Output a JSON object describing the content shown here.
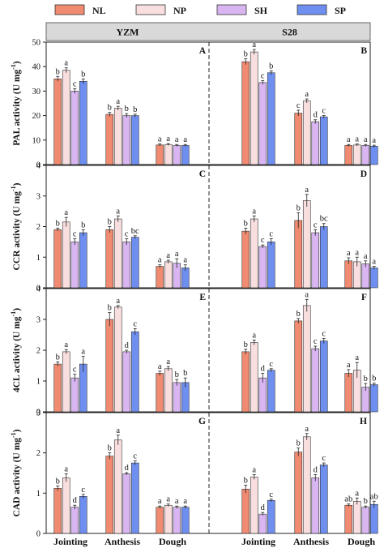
{
  "legend": [
    {
      "name": "NL",
      "color": "#f08a70"
    },
    {
      "name": "NP",
      "color": "#f8dede"
    },
    {
      "name": "SH",
      "color": "#d9b6f2"
    },
    {
      "name": "SP",
      "color": "#6e8ff0"
    }
  ],
  "strips": [
    "YZM",
    "S28"
  ],
  "chart_data": {
    "type": "bar",
    "categories": [
      "Jointing",
      "Anthesis",
      "Dough"
    ],
    "series_names": [
      "NL",
      "NP",
      "SH",
      "SP"
    ],
    "cultivars": [
      "YZM",
      "S28"
    ],
    "panels": [
      {
        "ylabel_main": "PAL activity (U mg",
        "ylabel_sup": "-1",
        "ylabel_end": ")",
        "ylim": [
          0,
          50
        ],
        "yticks": [
          "0",
          "10",
          "20",
          "30",
          "40",
          "50"
        ],
        "facets": [
          {
            "letter": "A",
            "cultivar": "YZM",
            "values": [
              [
                35.0,
                38.5,
                30.0,
                34.0
              ],
              [
                20.5,
                23.0,
                20.0,
                20.0
              ],
              [
                8.0,
                8.2,
                7.8,
                7.8
              ]
            ],
            "errors": [
              [
                1.0,
                1.0,
                1.0,
                1.0
              ],
              [
                0.8,
                0.8,
                0.8,
                0.6
              ],
              [
                0.4,
                0.4,
                0.4,
                0.4
              ]
            ],
            "labels": [
              [
                "b",
                "a",
                "c",
                "b"
              ],
              [
                "b",
                "a",
                "b",
                "b"
              ],
              [
                "a",
                "a",
                "a",
                "a"
              ]
            ]
          },
          {
            "letter": "B",
            "cultivar": "S28",
            "values": [
              [
                42.0,
                46.0,
                33.5,
                37.5
              ],
              [
                21.0,
                26.0,
                17.5,
                19.5
              ],
              [
                7.8,
                8.0,
                7.8,
                7.5
              ]
            ],
            "errors": [
              [
                1.2,
                1.0,
                0.8,
                0.8
              ],
              [
                1.2,
                0.8,
                0.8,
                0.5
              ],
              [
                0.4,
                0.4,
                0.4,
                0.4
              ]
            ],
            "labels": [
              [
                "b",
                "a",
                "c",
                "b"
              ],
              [
                "c",
                "a",
                "d",
                "c"
              ],
              [
                "a",
                "a",
                "a",
                "a"
              ]
            ]
          }
        ]
      },
      {
        "ylabel_main": "CCR activity (U mg",
        "ylabel_sup": "-1",
        "ylabel_end": ")",
        "ylim": [
          0,
          4
        ],
        "yticks": [
          "0",
          "1",
          "2",
          "3",
          "4"
        ],
        "facets": [
          {
            "letter": "C",
            "cultivar": "YZM",
            "values": [
              [
                1.9,
                2.15,
                1.5,
                1.8
              ],
              [
                1.9,
                2.25,
                1.5,
                1.65
              ],
              [
                0.7,
                0.85,
                0.8,
                0.65
              ]
            ],
            "errors": [
              [
                0.05,
                0.15,
                0.1,
                0.1
              ],
              [
                0.1,
                0.1,
                0.1,
                0.05
              ],
              [
                0.05,
                0.05,
                0.15,
                0.1
              ]
            ],
            "labels": [
              [
                "b",
                "a",
                "c",
                "b"
              ],
              [
                "b",
                "a",
                "c",
                "bc"
              ],
              [
                "a",
                "a",
                "a",
                "a"
              ]
            ]
          },
          {
            "letter": "D",
            "cultivar": "S28",
            "values": [
              [
                1.85,
                2.25,
                1.35,
                1.5
              ],
              [
                2.2,
                2.85,
                1.8,
                2.0
              ],
              [
                0.88,
                0.85,
                0.78,
                0.65
              ]
            ],
            "errors": [
              [
                0.1,
                0.1,
                0.05,
                0.1
              ],
              [
                0.25,
                0.2,
                0.1,
                0.1
              ],
              [
                0.1,
                0.15,
                0.1,
                0.05
              ]
            ],
            "labels": [
              [
                "b",
                "a",
                "c",
                "c"
              ],
              [
                "b",
                "a",
                "c",
                "bc"
              ],
              [
                "a",
                "a",
                "a",
                "a"
              ]
            ]
          }
        ]
      },
      {
        "ylabel_main": "4CL activity (U mg",
        "ylabel_sup": "-1",
        "ylabel_end": ")",
        "ylim": [
          0,
          4
        ],
        "yticks": [
          "0",
          "1",
          "2",
          "3",
          "4"
        ],
        "facets": [
          {
            "letter": "E",
            "cultivar": "YZM",
            "values": [
              [
                1.55,
                1.95,
                1.1,
                1.55
              ],
              [
                3.0,
                3.4,
                1.95,
                2.6
              ],
              [
                1.25,
                1.4,
                0.95,
                0.95
              ]
            ],
            "errors": [
              [
                0.07,
                0.07,
                0.12,
                0.25
              ],
              [
                0.22,
                0.05,
                0.05,
                0.1
              ],
              [
                0.07,
                0.07,
                0.1,
                0.15
              ]
            ],
            "labels": [
              [
                "b",
                "a",
                "c",
                "a"
              ],
              [
                "b",
                "a",
                "d",
                "c"
              ],
              [
                "a",
                "a",
                "b",
                "b"
              ]
            ]
          },
          {
            "letter": "F",
            "cultivar": "S28",
            "values": [
              [
                1.95,
                2.25,
                1.1,
                1.35
              ],
              [
                2.95,
                3.45,
                2.05,
                2.3
              ],
              [
                1.25,
                1.35,
                0.8,
                0.88
              ]
            ],
            "errors": [
              [
                0.08,
                0.08,
                0.15,
                0.05
              ],
              [
                0.08,
                0.2,
                0.08,
                0.08
              ],
              [
                0.12,
                0.25,
                0.12,
                0.05
              ]
            ],
            "labels": [
              [
                "b",
                "a",
                "d",
                "c"
              ],
              [
                "b",
                "a",
                "c",
                "c"
              ],
              [
                "a",
                "a",
                "b",
                "b"
              ]
            ]
          }
        ]
      },
      {
        "ylabel_main": "CAD activity (U mg",
        "ylabel_sup": "-1",
        "ylabel_end": ")",
        "ylim": [
          0,
          3
        ],
        "yticks": [
          "0",
          "1",
          "2",
          "3"
        ],
        "facets": [
          {
            "letter": "G",
            "cultivar": "YZM",
            "values": [
              [
                1.12,
                1.38,
                0.65,
                0.92
              ],
              [
                1.92,
                2.32,
                1.48,
                1.75
              ],
              [
                0.65,
                0.7,
                0.65,
                0.65
              ]
            ],
            "errors": [
              [
                0.06,
                0.1,
                0.05,
                0.05
              ],
              [
                0.08,
                0.12,
                0.03,
                0.05
              ],
              [
                0.03,
                0.03,
                0.03,
                0.03
              ]
            ],
            "labels": [
              [
                "b",
                "a",
                "d",
                "c"
              ],
              [
                "b",
                "a",
                "d",
                "c"
              ],
              [
                "a",
                "a",
                "a",
                "a"
              ]
            ]
          },
          {
            "letter": "H",
            "cultivar": "S28",
            "values": [
              [
                1.1,
                1.4,
                0.48,
                0.82
              ],
              [
                2.02,
                2.4,
                1.38,
                1.7
              ],
              [
                0.7,
                0.8,
                0.65,
                0.72
              ]
            ],
            "errors": [
              [
                0.1,
                0.06,
                0.04,
                0.03
              ],
              [
                0.1,
                0.08,
                0.08,
                0.05
              ],
              [
                0.03,
                0.08,
                0.03,
                0.08
              ]
            ],
            "labels": [
              [
                "b",
                "a",
                "d",
                "c"
              ],
              [
                "b",
                "a",
                "d",
                "c"
              ],
              [
                "ab",
                "a",
                "b",
                "ab"
              ]
            ]
          }
        ]
      }
    ]
  }
}
